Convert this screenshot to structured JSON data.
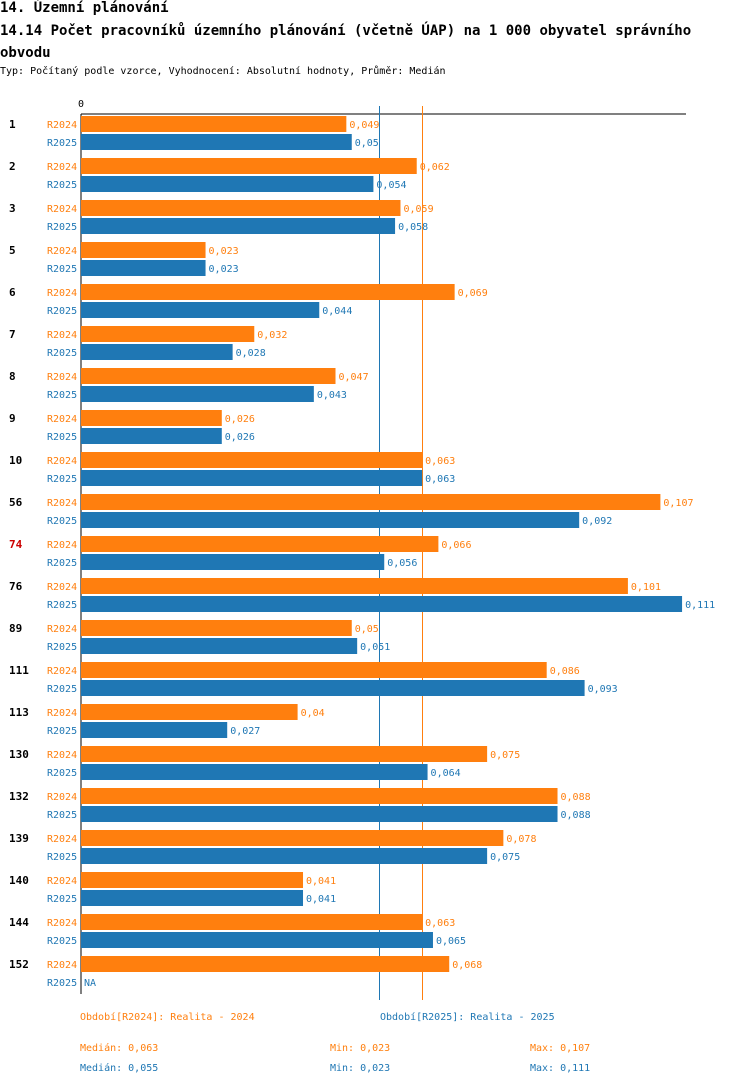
{
  "header": {
    "section": "14. Územní plánování",
    "title": "14.14 Počet pracovníků územního plánování (včetně ÚAP) na 1 000 obyvatel správního obvodu",
    "subtitle": "Typ: Počítaný podle vzorce, Vyhodnocení: Absolutní hodnoty, Průměr: Medián"
  },
  "colors": {
    "r2024": "#ff7f0e",
    "r2025": "#1f77b4",
    "highlight": "#cc0000"
  },
  "chart_data": {
    "type": "bar",
    "orientation": "horizontal",
    "axis_zero_label": "0",
    "xlim": [
      0,
      0.111
    ],
    "highlight_category": "74",
    "categories": [
      "1",
      "2",
      "3",
      "5",
      "6",
      "7",
      "8",
      "9",
      "10",
      "56",
      "74",
      "76",
      "89",
      "111",
      "113",
      "130",
      "132",
      "139",
      "140",
      "144",
      "152"
    ],
    "series": [
      {
        "name": "R2024",
        "values": [
          0.049,
          0.062,
          0.059,
          0.023,
          0.069,
          0.032,
          0.047,
          0.026,
          0.063,
          0.107,
          0.066,
          0.101,
          0.05,
          0.086,
          0.04,
          0.075,
          0.088,
          0.078,
          0.041,
          0.063,
          0.068
        ],
        "labels": [
          "0,049",
          "0,062",
          "0,059",
          "0,023",
          "0,069",
          "0,032",
          "0,047",
          "0,026",
          "0,063",
          "0,107",
          "0,066",
          "0,101",
          "0,05",
          "0,086",
          "0,04",
          "0,075",
          "0,088",
          "0,078",
          "0,041",
          "0,063",
          "0,068"
        ]
      },
      {
        "name": "R2025",
        "values": [
          0.05,
          0.054,
          0.058,
          0.023,
          0.044,
          0.028,
          0.043,
          0.026,
          0.063,
          0.092,
          0.056,
          0.111,
          0.051,
          0.093,
          0.027,
          0.064,
          0.088,
          0.075,
          0.041,
          0.065,
          null
        ],
        "labels": [
          "0,05",
          "0,054",
          "0,058",
          "0,023",
          "0,044",
          "0,028",
          "0,043",
          "0,026",
          "0,063",
          "0,092",
          "0,056",
          "0,111",
          "0,051",
          "0,093",
          "0,027",
          "0,064",
          "0,088",
          "0,075",
          "0,041",
          "0,065",
          "NA"
        ]
      }
    ],
    "median_lines": [
      {
        "series": "R2024",
        "value": 0.063
      },
      {
        "series": "R2025",
        "value": 0.055
      }
    ]
  },
  "legend": {
    "r2024": "Období[R2024]: Realita - 2024",
    "r2025": "Období[R2025]: Realita - 2025"
  },
  "stats": {
    "r2024": {
      "median": "Medián: 0,063",
      "min": "Min: 0,023",
      "max": "Max: 0,107"
    },
    "r2025": {
      "median": "Medián: 0,055",
      "min": "Min: 0,023",
      "max": "Max: 0,111"
    }
  }
}
